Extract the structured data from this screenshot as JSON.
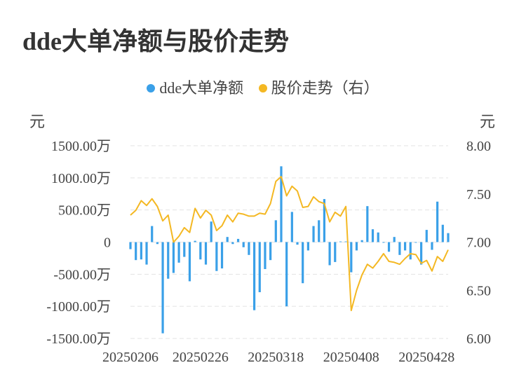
{
  "chart_data": {
    "type": "bar+line",
    "title": "dde大单净额与股价走势",
    "legend": [
      {
        "name": "dde大单净额",
        "color": "#3AA0E8"
      },
      {
        "name": "股价走势（右）",
        "color": "#F4B823"
      }
    ],
    "y_left_unit": "元",
    "y_right_unit": "元",
    "y_left_ticks": [
      "1500.00万",
      "1000.00万",
      "500.00万",
      "0",
      "-500.00万",
      "-1000.00万",
      "-1500.00万"
    ],
    "y_left_range": [
      -1500,
      1500
    ],
    "y_right_ticks": [
      "8.00",
      "7.50",
      "7.00",
      "6.50",
      "6.00"
    ],
    "y_right_range": [
      6.0,
      8.0
    ],
    "x_tick_labels": [
      "20250206",
      "20250226",
      "20250318",
      "20250408",
      "20250428"
    ],
    "x_tick_index": [
      0,
      13,
      27,
      41,
      55
    ],
    "series": [
      {
        "name": "dde大单净额",
        "type": "bar",
        "unit": "万",
        "values": [
          -110,
          -280,
          -270,
          -350,
          250,
          -30,
          -1420,
          -570,
          -480,
          -320,
          -230,
          -610,
          20,
          -270,
          -350,
          320,
          -450,
          -410,
          80,
          -30,
          50,
          -80,
          -200,
          -1060,
          -780,
          -420,
          -280,
          340,
          1180,
          -1000,
          470,
          -40,
          -640,
          -130,
          250,
          340,
          670,
          -360,
          -310,
          10,
          10,
          -470,
          -130,
          30,
          560,
          200,
          150,
          -10,
          -150,
          80,
          -200,
          -130,
          -270,
          -10,
          -350,
          190,
          -120,
          630,
          270,
          140
        ]
      },
      {
        "name": "股价走势（右）",
        "type": "line",
        "values": [
          7.28,
          7.33,
          7.43,
          7.38,
          7.45,
          7.37,
          7.22,
          7.28,
          7.0,
          7.06,
          7.15,
          7.1,
          7.35,
          7.25,
          7.33,
          7.28,
          7.12,
          7.17,
          7.28,
          7.21,
          7.3,
          7.29,
          7.27,
          7.27,
          7.3,
          7.29,
          7.4,
          7.63,
          7.68,
          7.48,
          7.58,
          7.53,
          7.36,
          7.37,
          7.47,
          7.42,
          7.4,
          7.21,
          7.31,
          7.27,
          7.37,
          6.29,
          6.5,
          6.66,
          6.77,
          6.73,
          6.8,
          6.88,
          6.8,
          6.79,
          6.77,
          6.83,
          6.88,
          6.87,
          6.78,
          6.81,
          6.7,
          6.85,
          6.8,
          6.92
        ]
      }
    ],
    "grid": true
  }
}
